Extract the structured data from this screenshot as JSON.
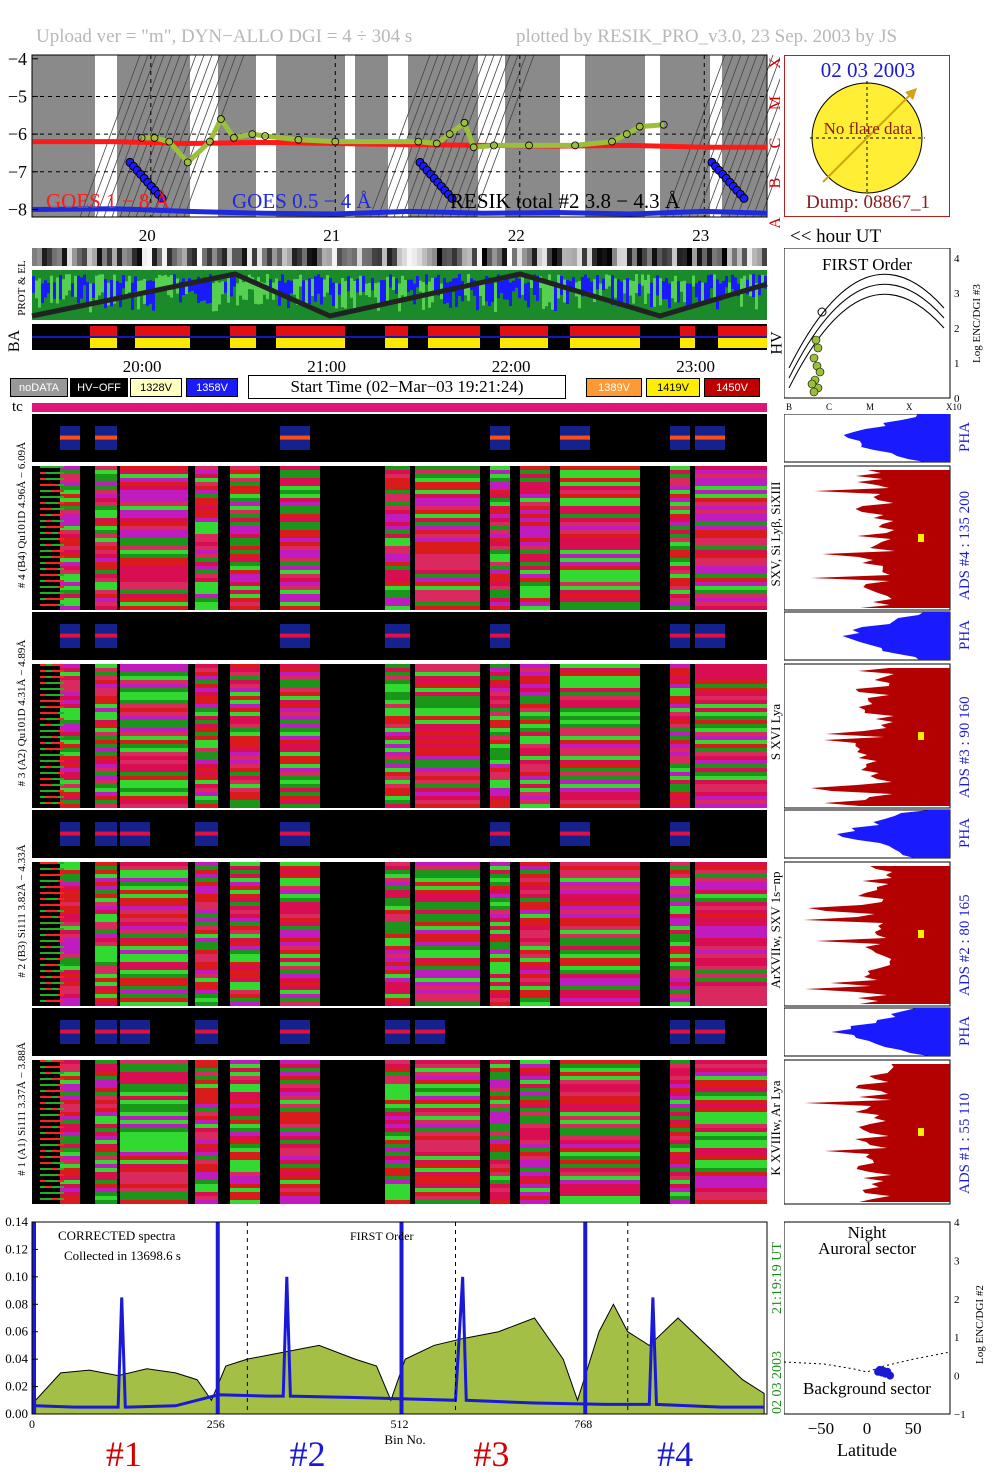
{
  "header": {
    "upload": "Upload ver = \"m\", DYN−ALLO DGI =   4 ÷ 304 s",
    "plotted": "plotted by RESIK_PRO_v3.0, 23 Sep. 2003 by JS"
  },
  "goes": {
    "yticks": [
      "−4",
      "−5",
      "−6",
      "−7",
      "−8"
    ],
    "flare_classes": [
      "X",
      "M",
      "C",
      "B",
      "A"
    ],
    "label_goes1": "GOES 1 − 8 Å",
    "label_goes05": "GOES 0.5 − 4 Å",
    "label_resik": "RESIK total #2  3.8 − 4.3 Å",
    "hour_labels": [
      "20",
      "21",
      "22",
      "23"
    ],
    "hour_unit": "<< hour UT"
  },
  "sun_box": {
    "date": "02 03 2003",
    "no_flare": "No flare data",
    "dump": "Dump: 08867_1"
  },
  "status": {
    "label_prot": "PROT & EL",
    "label_ba": "BA",
    "label_hv": "HV",
    "time_labels": [
      "20:00",
      "21:00",
      "22:00",
      "23:00"
    ]
  },
  "legend": {
    "nodata": "noDATA",
    "hvoff": "HV−OFF",
    "v1": "1328V",
    "v2": "1358V",
    "start_time": "Start Time (02−Mar−03 19:21:24)",
    "v3": "1389V",
    "v4": "1419V",
    "v5": "1450V",
    "tc": "tc"
  },
  "first_order": {
    "title": "FIRST Order",
    "ylabel": "Log ENC/DGI #3",
    "yticks": [
      "0",
      "1",
      "2",
      "3",
      "4"
    ],
    "xticks": [
      "B",
      "C",
      "M",
      "X",
      "X10"
    ]
  },
  "channels": [
    {
      "pha_label": "# 4 (B4) Qu101D 4.96Å − 6.09Å",
      "line_label": "SXV, Si Lyβ, SiXIII",
      "ads": "ADS #4 :  135 200",
      "pha": "PHA"
    },
    {
      "pha_label": "# 3 (A2) Qu101D 4.31Å − 4.89Å",
      "line_label": "S XVI Lya",
      "ads": "ADS #3 :   90 160",
      "pha": "PHA"
    },
    {
      "pha_label": "# 2 (B3) Si111 3.82Å − 4.33Å",
      "line_label": "ArXVIIw, SXV 1s−np",
      "ads": "ADS #2 :   80 165",
      "pha": "PHA"
    },
    {
      "pha_label": "# 1 (A1) Si111 3.37Å − 3.88Å",
      "line_label": "K XVIIIw, Ar Lya",
      "ads": "ADS #1 :   55 110",
      "pha": "PHA"
    }
  ],
  "spectrum": {
    "title1": "CORRECTED spectra",
    "title2": "Collected in 13698.6 s",
    "first_order": "FIRST Order",
    "side_time": "21:19:19 UT",
    "side_date": "02 03 2003",
    "xlabel": "Bin No.",
    "detector_labels": [
      "#1",
      "#2",
      "#3",
      "#4"
    ]
  },
  "latitude": {
    "night": "Night",
    "auroral": "Auroral sector",
    "background": "Background sector",
    "xlabel": "Latitude",
    "ylabel": "Log ENC/DGI #2",
    "xticks": [
      "−50",
      "0",
      "50"
    ],
    "yticks": [
      "−1",
      "0",
      "1",
      "2",
      "3",
      "4"
    ]
  },
  "colors": {
    "goes1": "#ff1a1a",
    "goes05": "#1e2adc",
    "resik": "#9bbf3a",
    "spectrum_fill": "#a3bf45",
    "ads_fill": "#b30000",
    "pha_fill": "#1a1aff",
    "sun": "#ffee33",
    "crimson_label": "#d40000",
    "blue_label": "#1a1ad6"
  },
  "chart_data": [
    {
      "type": "line",
      "title": "",
      "xlabel": "hour UT",
      "ylabel": "",
      "ylim": [
        -8.2,
        -3.9
      ],
      "xlim": [
        19.356,
        23.34
      ],
      "grid": true,
      "series": [
        {
          "name": "GOES 1 − 8 Å",
          "x": [
            19.36,
            19.8,
            20.2,
            20.6,
            21.0,
            21.4,
            21.8,
            22.2,
            22.6,
            23.0,
            23.34
          ],
          "values": [
            -6.2,
            -6.2,
            -6.25,
            -6.22,
            -6.25,
            -6.28,
            -6.3,
            -6.32,
            -6.3,
            -6.35,
            -6.35
          ]
        },
        {
          "name": "GOES 0.5 − 4 Å",
          "x": [
            19.36,
            19.8,
            20.2,
            20.6,
            21.0,
            21.4,
            21.8,
            22.2,
            22.6,
            23.0,
            23.34
          ],
          "values": [
            -8.0,
            -7.98,
            -8.05,
            -8.1,
            -8.12,
            -8.05,
            -8.1,
            -8.08,
            -8.12,
            -8.05,
            -8.1
          ]
        },
        {
          "name": "RESIK total #2  3.8 − 4.3 Å",
          "x": [
            19.95,
            20.02,
            20.1,
            20.2,
            20.32,
            20.38,
            20.45,
            20.55,
            20.62,
            20.8,
            21.0,
            21.45,
            21.55,
            21.62,
            21.7,
            21.75,
            21.86,
            22.05,
            22.3,
            22.5,
            22.58,
            22.65,
            22.78
          ],
          "values": [
            -6.1,
            -6.1,
            -6.2,
            -6.75,
            -6.2,
            -5.6,
            -6.1,
            -6.0,
            -6.05,
            -6.15,
            -6.2,
            -6.2,
            -6.25,
            -6.0,
            -5.7,
            -6.35,
            -6.3,
            -6.3,
            -6.3,
            -6.2,
            -6.0,
            -5.8,
            -5.75
          ]
        }
      ]
    },
    {
      "type": "area",
      "title": "",
      "xlabel": "Bin No.",
      "ylabel": "",
      "xlim": [
        0,
        1024
      ],
      "ylim": [
        0,
        0.14
      ],
      "x_ticks": [
        0,
        256,
        512,
        768
      ],
      "y_ticks": [
        0.0,
        0.02,
        0.04,
        0.06,
        0.08,
        0.1,
        0.12,
        0.14
      ],
      "series": [
        {
          "name": "",
          "x": [
            5,
            40,
            80,
            120,
            160,
            200,
            230,
            250,
            270,
            300,
            350,
            400,
            450,
            480,
            500,
            520,
            560,
            600,
            650,
            700,
            740,
            760,
            790,
            810,
            830,
            860,
            900,
            950,
            990,
            1020
          ],
          "values": [
            0.01,
            0.03,
            0.032,
            0.028,
            0.033,
            0.03,
            0.025,
            0.01,
            0.035,
            0.04,
            0.045,
            0.05,
            0.04,
            0.035,
            0.01,
            0.04,
            0.05,
            0.055,
            0.06,
            0.07,
            0.04,
            0.01,
            0.06,
            0.08,
            0.06,
            0.05,
            0.07,
            0.045,
            0.025,
            0.015
          ]
        },
        {
          "name": "",
          "x": [
            5,
            60,
            120,
            125,
            130,
            200,
            260,
            330,
            350,
            355,
            360,
            450,
            520,
            590,
            600,
            605,
            700,
            800,
            860,
            865,
            870,
            960,
            1020
          ],
          "values": [
            0.006,
            0.005,
            0.005,
            0.085,
            0.005,
            0.006,
            0.014,
            0.013,
            0.013,
            0.1,
            0.013,
            0.012,
            0.011,
            0.01,
            0.1,
            0.01,
            0.008,
            0.007,
            0.007,
            0.085,
            0.007,
            0.005,
            0.005
          ]
        }
      ]
    },
    {
      "type": "scatter",
      "title": "",
      "xlabel": "Latitude",
      "ylabel": "Log ENC/DGI #2",
      "xlim": [
        -90,
        90
      ],
      "ylim": [
        -1,
        4
      ],
      "series": [
        {
          "name": "",
          "x": [
            12,
            14,
            16,
            18,
            20,
            22,
            25
          ],
          "values": [
            0.1,
            0.15,
            0.08,
            0.12,
            0.05,
            0.1,
            0.0
          ]
        }
      ]
    }
  ]
}
